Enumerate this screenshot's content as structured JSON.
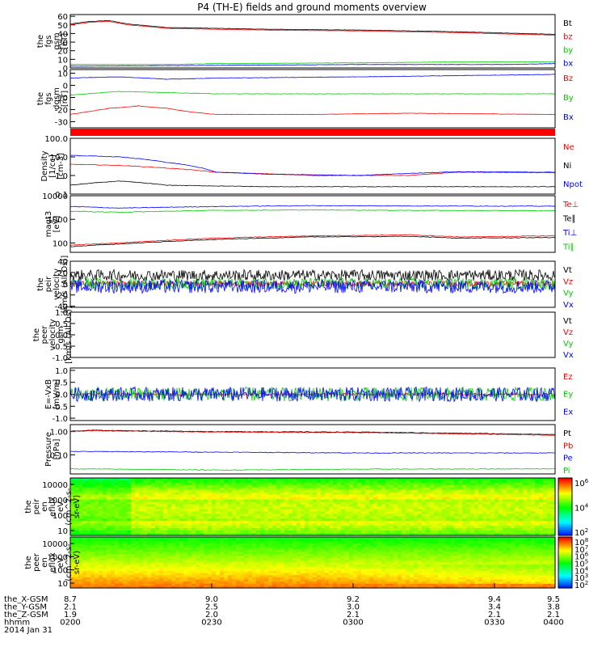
{
  "title": "P4 (TH-E) fields and ground moments overview",
  "colors": {
    "black": "#000000",
    "red": "#ff0000",
    "green": "#00cc00",
    "blue": "#0000ff"
  },
  "chart_data": [
    {
      "type": "line",
      "name": "fgs gsm",
      "ylabel": [
        "the",
        "fgs",
        "gsm",
        "[nT]"
      ],
      "ylim": [
        0,
        62
      ],
      "ticks": [
        0,
        10,
        20,
        30,
        40,
        50,
        60
      ],
      "series": [
        {
          "name": "Bt",
          "color": "black",
          "points": [
            [
              0,
              51
            ],
            [
              0.04,
              54
            ],
            [
              0.08,
              55
            ],
            [
              0.12,
              51
            ],
            [
              0.2,
              47
            ],
            [
              0.4,
              45
            ],
            [
              0.6,
              44
            ],
            [
              0.8,
              42
            ],
            [
              1,
              39
            ]
          ]
        },
        {
          "name": "bz",
          "color": "red",
          "points": [
            [
              0,
              50
            ],
            [
              0.04,
              53
            ],
            [
              0.08,
              54
            ],
            [
              0.12,
              50
            ],
            [
              0.2,
              46
            ],
            [
              0.4,
              44
            ],
            [
              0.6,
              43
            ],
            [
              0.8,
              41
            ],
            [
              1,
              38
            ]
          ]
        },
        {
          "name": "by",
          "color": "green",
          "points": [
            [
              0,
              4
            ],
            [
              0.2,
              4
            ],
            [
              0.3,
              5
            ],
            [
              0.6,
              6
            ],
            [
              0.8,
              7
            ],
            [
              1,
              7
            ]
          ]
        },
        {
          "name": "bx",
          "color": "blue",
          "points": [
            [
              0,
              2
            ],
            [
              0.3,
              3
            ],
            [
              0.6,
              4
            ],
            [
              0.9,
              4
            ],
            [
              1,
              5
            ]
          ]
        }
      ]
    },
    {
      "type": "line",
      "name": "fgs dgsm",
      "ylabel": [
        "the",
        "fgs",
        "dgsm",
        "[nT]"
      ],
      "ylim": [
        -35,
        13
      ],
      "ticks": [
        -30,
        -20,
        -10,
        0,
        10
      ],
      "series": [
        {
          "name": "Bz",
          "color": "red",
          "points": [
            [
              0,
              -24
            ],
            [
              0.08,
              -19
            ],
            [
              0.14,
              -17
            ],
            [
              0.2,
              -19
            ],
            [
              0.25,
              -22
            ],
            [
              0.3,
              -24
            ],
            [
              0.5,
              -24
            ],
            [
              0.7,
              -23
            ],
            [
              1,
              -24
            ]
          ]
        },
        {
          "name": "By",
          "color": "green",
          "points": [
            [
              0,
              -8
            ],
            [
              0.1,
              -5
            ],
            [
              0.2,
              -6
            ],
            [
              0.3,
              -7
            ],
            [
              0.5,
              -7
            ],
            [
              0.7,
              -7
            ],
            [
              1,
              -7
            ]
          ]
        },
        {
          "name": "Bx",
          "color": "blue",
          "points": [
            [
              0,
              6
            ],
            [
              0.1,
              7
            ],
            [
              0.2,
              5
            ],
            [
              0.3,
              6
            ],
            [
              0.6,
              7
            ],
            [
              0.8,
              8
            ],
            [
              1,
              9
            ]
          ]
        }
      ]
    },
    {
      "type": "bar",
      "name": "mode bar",
      "ylabel": [],
      "color": "red"
    },
    {
      "type": "line",
      "name": "Density",
      "log": true,
      "ylabel": [
        "Density",
        "[1/cc]",
        "[cm-3]"
      ],
      "ylim": [
        0.1,
        100
      ],
      "tick_labels": [
        "0.1",
        "1.0",
        "10.0",
        "100.0"
      ],
      "series": [
        {
          "name": "Ne",
          "color": "red",
          "points": [
            [
              0,
              4
            ],
            [
              0.1,
              3.5
            ],
            [
              0.2,
              2.5
            ],
            [
              0.3,
              1.5
            ],
            [
              0.5,
              1
            ],
            [
              0.7,
              1
            ],
            [
              0.8,
              1.5
            ],
            [
              1,
              1.4
            ]
          ]
        },
        {
          "name": "Ni",
          "color": "black",
          "points": [
            [
              0,
              0.3
            ],
            [
              0.1,
              0.5
            ],
            [
              0.2,
              0.3
            ],
            [
              0.4,
              0.25
            ],
            [
              0.6,
              0.25
            ],
            [
              0.8,
              0.25
            ],
            [
              1,
              0.25
            ]
          ]
        },
        {
          "name": "Npot",
          "color": "blue",
          "points": [
            [
              0,
              12
            ],
            [
              0.1,
              10
            ],
            [
              0.2,
              5
            ],
            [
              0.3,
              1.5
            ],
            [
              0.4,
              1.2
            ],
            [
              0.6,
              1
            ],
            [
              0.8,
              1.6
            ],
            [
              1,
              1.5
            ]
          ]
        }
      ]
    },
    {
      "type": "line",
      "name": "magt3",
      "log": true,
      "ylabel": [
        "magt3",
        "[eV]"
      ],
      "ylim": [
        40,
        10000
      ],
      "tick_labels": [
        "100",
        "1000",
        "10000"
      ],
      "series": [
        {
          "name": "Te⊥",
          "color": "red",
          "points": [
            [
              0,
              80
            ],
            [
              0.1,
              100
            ],
            [
              0.3,
              160
            ],
            [
              0.5,
              200
            ],
            [
              0.7,
              220
            ],
            [
              0.8,
              180
            ],
            [
              1,
              200
            ]
          ]
        },
        {
          "name": "Te∥",
          "color": "black",
          "points": [
            [
              0,
              70
            ],
            [
              0.1,
              90
            ],
            [
              0.3,
              140
            ],
            [
              0.5,
              180
            ],
            [
              0.7,
              190
            ],
            [
              0.8,
              160
            ],
            [
              1,
              170
            ]
          ]
        },
        {
          "name": "Ti⊥",
          "color": "blue",
          "points": [
            [
              0,
              3500
            ],
            [
              0.1,
              3000
            ],
            [
              0.3,
              3500
            ],
            [
              0.5,
              3800
            ],
            [
              0.7,
              3700
            ],
            [
              1,
              3600
            ]
          ]
        },
        {
          "name": "Ti∥",
          "color": "green",
          "points": [
            [
              0,
              2200
            ],
            [
              0.1,
              2000
            ],
            [
              0.3,
              2400
            ],
            [
              0.5,
              2500
            ],
            [
              0.7,
              2400
            ],
            [
              1,
              2300
            ]
          ]
        }
      ]
    },
    {
      "type": "line",
      "name": "peir velocity",
      "ylabel": [
        "the",
        "peir",
        "velocity",
        "[km/s (All Os)]"
      ],
      "ylim": [
        -42,
        40
      ],
      "ticks": [
        -40,
        -20,
        0,
        20,
        40
      ],
      "series": [
        {
          "name": "Vt",
          "color": "black",
          "level": 15,
          "noise": 10
        },
        {
          "name": "Vz",
          "color": "red",
          "level": 0,
          "noise": 5
        },
        {
          "name": "Vy",
          "color": "green",
          "level": 0,
          "noise": 10
        },
        {
          "name": "Vx",
          "color": "blue",
          "level": -5,
          "noise": 12
        }
      ]
    },
    {
      "type": "line",
      "name": "peer velocity",
      "ylabel": [
        "the",
        "peer",
        "velocity",
        "gsm",
        "[km/s (All Os)]"
      ],
      "ylim": [
        -1,
        1
      ],
      "ticks": [
        -1,
        -0.5,
        0,
        0.5,
        1
      ],
      "tick_labels": [
        "-1.0",
        "-0.5",
        "0.0",
        "0.5",
        "1.0"
      ],
      "series": [
        {
          "name": "Vt",
          "color": "black"
        },
        {
          "name": "Vz",
          "color": "red"
        },
        {
          "name": "Vy",
          "color": "green"
        },
        {
          "name": "Vx",
          "color": "blue"
        }
      ]
    },
    {
      "type": "line",
      "name": "E = -VxB",
      "ylabel": [
        "E=-VxB",
        "[mV/m]"
      ],
      "ylim": [
        -1.1,
        1.1
      ],
      "ticks": [
        -1,
        -0.5,
        0,
        0.5,
        1
      ],
      "tick_labels": [
        "-1.0",
        "-0.5",
        "0.0",
        "0.5",
        "1.0"
      ],
      "series": [
        {
          "name": "Ez",
          "color": "red",
          "level": 0,
          "noise": 0.05
        },
        {
          "name": "Ey",
          "color": "green",
          "level": 0,
          "noise": 0.3
        },
        {
          "name": "Ex",
          "color": "blue",
          "level": 0,
          "noise": 0.3
        }
      ]
    },
    {
      "type": "line",
      "name": "Pressure",
      "log": true,
      "ylabel": [
        "Pressure",
        "[nPa]"
      ],
      "ylim": [
        0.015,
        2
      ],
      "tick_labels": [
        "0.01",
        "0.10",
        "1.00"
      ],
      "series": [
        {
          "name": "Pt",
          "color": "black",
          "points": [
            [
              0,
              1.05
            ],
            [
              0.05,
              1.15
            ],
            [
              0.1,
              1.1
            ],
            [
              0.3,
              1.0
            ],
            [
              0.6,
              0.95
            ],
            [
              0.8,
              0.85
            ],
            [
              1,
              0.75
            ]
          ]
        },
        {
          "name": "Pb",
          "color": "red",
          "points": [
            [
              0,
              1.0
            ],
            [
              0.05,
              1.1
            ],
            [
              0.1,
              1.05
            ],
            [
              0.3,
              0.95
            ],
            [
              0.6,
              0.9
            ],
            [
              0.8,
              0.8
            ],
            [
              1,
              0.7
            ]
          ]
        },
        {
          "name": "Pe",
          "color": "blue",
          "points": [
            [
              0,
              0.14
            ],
            [
              0.3,
              0.13
            ],
            [
              0.6,
              0.12
            ],
            [
              1,
              0.12
            ]
          ]
        },
        {
          "name": "Pi",
          "color": "green",
          "points": [
            [
              0,
              0.025
            ],
            [
              0.3,
              0.022
            ],
            [
              0.6,
              0.024
            ],
            [
              1,
              0.025
            ]
          ]
        }
      ]
    },
    {
      "type": "heatmap",
      "name": "peir en eflux",
      "ylabel": [
        "the",
        "peir",
        "en",
        "eflux",
        "eV",
        "(cm^2-s-",
        "sr-eV)"
      ],
      "tick_labels": [
        "10",
        "100",
        "1000",
        "10000"
      ],
      "colorbar": [
        "10^2",
        "10^4",
        "10^6"
      ]
    },
    {
      "type": "heatmap",
      "name": "peer en eflux",
      "ylabel": [
        "the",
        "peer",
        "en",
        "eflux",
        "eV",
        "(cm^2-s-",
        "sr-eV)"
      ],
      "tick_labels": [
        "10",
        "100",
        "1000",
        "10000"
      ],
      "colorbar": [
        "10^2",
        "10^3",
        "10^4",
        "10^5",
        "10^6",
        "10^7",
        "10^8"
      ]
    }
  ],
  "xaxis": {
    "rows": [
      {
        "label": "the_X-GSM",
        "values": [
          "8.7",
          "9.0",
          "9.2",
          "9.4",
          "9.5"
        ]
      },
      {
        "label": "the_Y-GSM",
        "values": [
          "2.1",
          "2.5",
          "3.0",
          "3.4",
          "3.8"
        ]
      },
      {
        "label": "the_Z-GSM",
        "values": [
          "1.9",
          "2.0",
          "2.1",
          "2.1",
          "2.1"
        ]
      },
      {
        "label": "hhmm",
        "values": [
          "0200",
          "0230",
          "0300",
          "0330",
          "0400"
        ]
      }
    ],
    "date": "2014 Jan 31"
  }
}
